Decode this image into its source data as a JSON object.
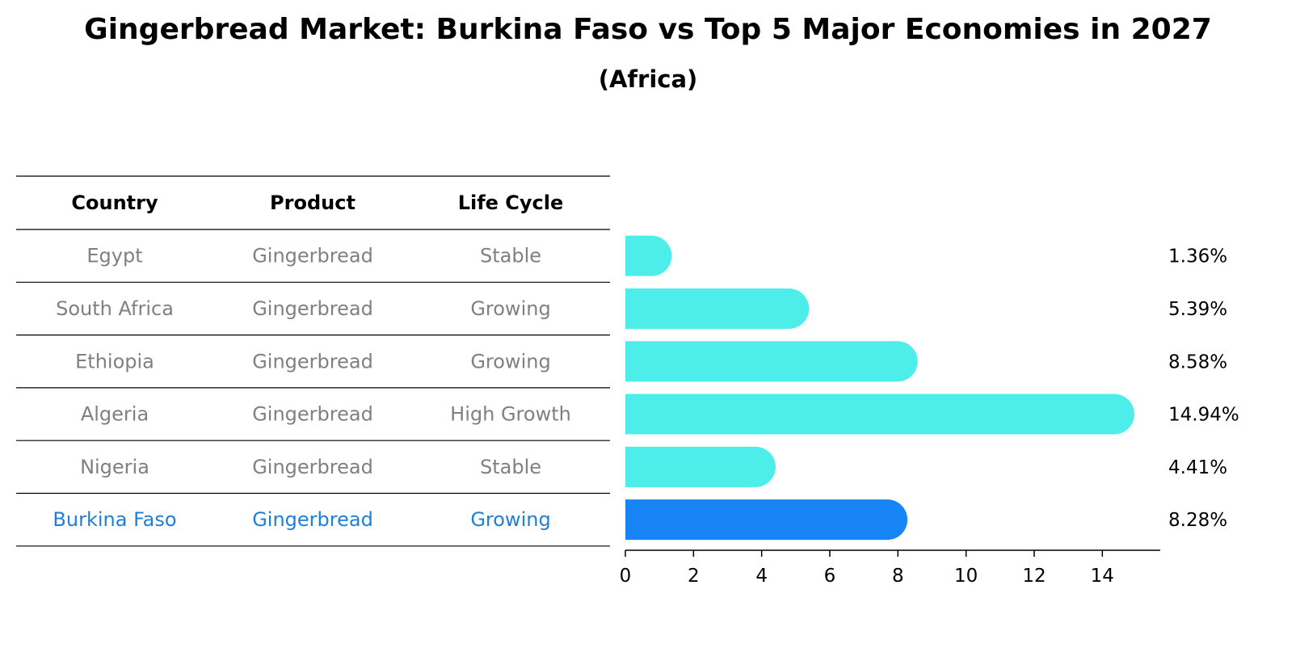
{
  "chart_data": {
    "type": "bar",
    "orientation": "horizontal",
    "title": "Gingerbread Market: Burkina Faso vs Top 5 Major Economies in 2027",
    "subtitle": "(Africa)",
    "table_headers": [
      "Country",
      "Product",
      "Life Cycle"
    ],
    "rows": [
      {
        "country": "Egypt",
        "product": "Gingerbread",
        "life_cycle": "Stable",
        "value": 1.36,
        "label": "1.36%",
        "highlight": false
      },
      {
        "country": "South Africa",
        "product": "Gingerbread",
        "life_cycle": "Growing",
        "value": 5.39,
        "label": "5.39%",
        "highlight": false
      },
      {
        "country": "Ethiopia",
        "product": "Gingerbread",
        "life_cycle": "Growing",
        "value": 8.58,
        "label": "8.58%",
        "highlight": false
      },
      {
        "country": "Algeria",
        "product": "Gingerbread",
        "life_cycle": "High Growth",
        "value": 14.94,
        "label": "14.94%",
        "highlight": false
      },
      {
        "country": "Nigeria",
        "product": "Gingerbread",
        "life_cycle": "Stable",
        "value": 4.41,
        "label": "4.41%",
        "highlight": false
      },
      {
        "country": "Burkina Faso",
        "product": "Gingerbread",
        "life_cycle": "Growing",
        "value": 8.28,
        "label": "8.28%",
        "highlight": true
      }
    ],
    "x_ticks": [
      0,
      2,
      4,
      6,
      8,
      10,
      12,
      14
    ],
    "xlim": [
      0,
      15.7
    ],
    "grid": false,
    "legend": "none",
    "colors": {
      "bar": "#4deeea",
      "bar_highlight": "#1785f5",
      "text_muted": "#808080",
      "text_highlight": "#1f7fd6",
      "header": "#000000"
    }
  }
}
